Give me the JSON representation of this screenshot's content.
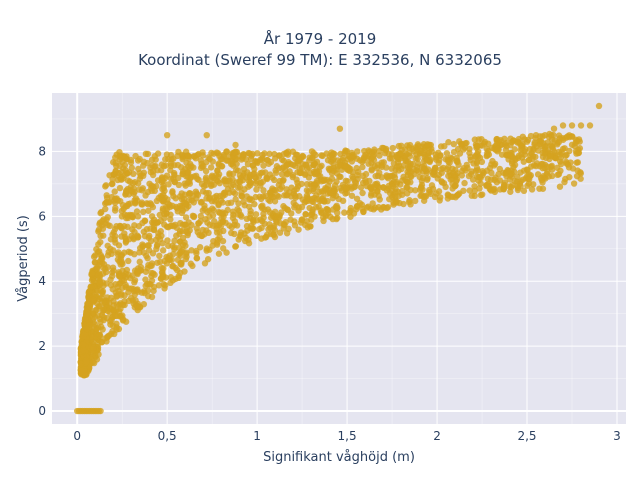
{
  "chart_data": {
    "type": "scatter",
    "title_lines": [
      "År 1979 - 2019",
      "Koordinat (Sweref 99 TM): E 332536, N 6332065"
    ],
    "xlabel": "Signifikant våghöjd (m)",
    "ylabel": "Vågperiod (s)",
    "xlim": [
      -0.14,
      3.05
    ],
    "ylim": [
      -0.4,
      9.8
    ],
    "xticks": [
      0,
      0.5,
      1,
      1.5,
      2,
      2.5,
      3
    ],
    "xtick_labels": [
      "0",
      "0,5",
      "1",
      "1,5",
      "2",
      "2,5",
      "3"
    ],
    "yticks": [
      0,
      2,
      4,
      6,
      8
    ],
    "ytick_labels": [
      "0",
      "2",
      "4",
      "6",
      "8"
    ],
    "grid": true,
    "marker_color": "#d4a31f",
    "plot_background": "#e5e5f0",
    "series": [
      {
        "points_description": "dense point cloud",
        "x": [
          0,
          0.02,
          0.05,
          0.08,
          0.12,
          0.01,
          0.03,
          0.06,
          0.09,
          0.1,
          0.05,
          0.1,
          0.15,
          0.2,
          0.25,
          0.3,
          0.08,
          0.12,
          0.18,
          0.22,
          0.28,
          0.35,
          0.4,
          0.45,
          0.5,
          0.55,
          0.6,
          0.65,
          0.7,
          0.75,
          0.8,
          0.9,
          1.0,
          1.1,
          1.2,
          1.3,
          1.4,
          1.5,
          1.6,
          1.7,
          1.8,
          1.9,
          2.0,
          2.1,
          2.2,
          2.3,
          2.4,
          2.5,
          2.6,
          2.7,
          2.8,
          2.9,
          0.5,
          0.7,
          1.0,
          1.5
        ],
        "y": [
          0,
          0,
          0,
          0,
          0,
          1.1,
          1.5,
          2.0,
          2.5,
          3.0,
          4.0,
          5.0,
          6.0,
          7.0,
          7.8,
          8.0,
          1.3,
          2.2,
          3.5,
          4.5,
          5.5,
          6.5,
          7.2,
          7.5,
          7.6,
          7.8,
          7.7,
          7.8,
          7.8,
          7.8,
          7.8,
          7.8,
          7.9,
          7.9,
          7.9,
          8.0,
          8.0,
          8.0,
          8.0,
          8.0,
          8.1,
          8.1,
          8.1,
          8.0,
          8.2,
          8.3,
          8.3,
          8.4,
          8.7,
          8.8,
          8.8,
          9.4,
          8.5,
          8.5,
          8.2,
          8.7
        ]
      }
    ]
  }
}
